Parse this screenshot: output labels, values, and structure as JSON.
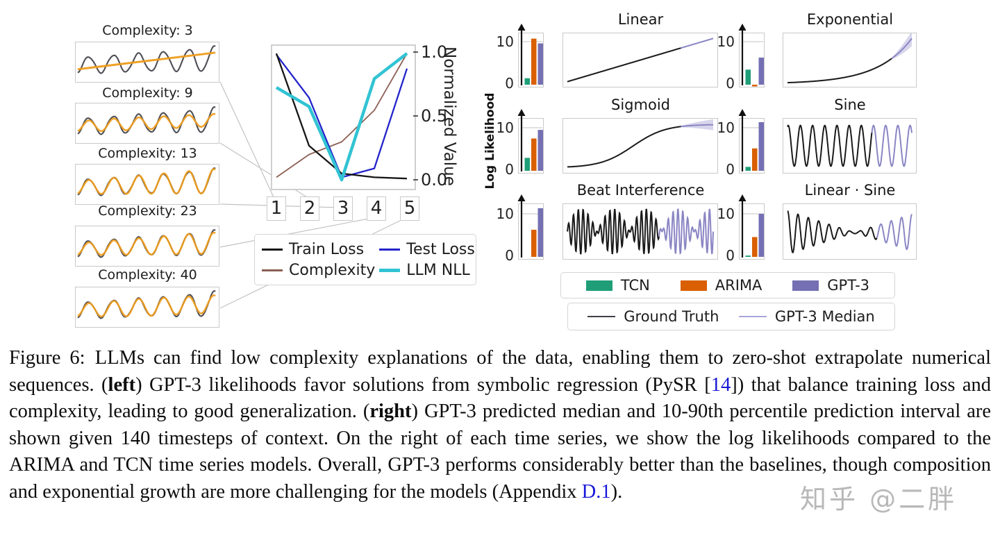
{
  "watermark": "知乎 @二胖",
  "figure": {
    "left_panels": {
      "items": [
        {
          "label": "Complexity: 3",
          "fit": "line",
          "rel": 0,
          "cap": 0
        },
        {
          "label": "Complexity: 9",
          "fit": "sine",
          "rel": 0.75,
          "cap": 0.25
        },
        {
          "label": "Complexity: 13",
          "fit": "sine",
          "rel": 0.97,
          "cap": 1.0
        },
        {
          "label": "Complexity: 23",
          "fit": "sine",
          "rel": 0.88,
          "cap": 0.85
        },
        {
          "label": "Complexity: 40",
          "fit": "sine",
          "rel": 0.93,
          "cap": 0.45
        }
      ]
    },
    "center_chart": {
      "ylabel": "Normalized Value",
      "yticks": [
        "1.0",
        "0.5",
        "0.0"
      ],
      "xticks": [
        "1",
        "2",
        "3",
        "4",
        "5"
      ],
      "legend": [
        {
          "label": "Train Loss",
          "color": "#151515",
          "thick": false
        },
        {
          "label": "Test Loss",
          "color": "#2323cb",
          "thick": false
        },
        {
          "label": "Complexity",
          "color": "#8c5f54",
          "thick": false
        },
        {
          "label": "LLM NLL",
          "color": "#31c3d3",
          "thick": true
        }
      ]
    },
    "right_panel": {
      "ylabel": "Log Likelihood",
      "bar_axis": {
        "top": "10",
        "bottom": "0"
      },
      "groups": [
        {
          "title": "Linear",
          "bars": [
            1.5,
            10.7,
            9.6
          ],
          "wave": "linear",
          "split": 0.78
        },
        {
          "title": "Exponential",
          "bars": [
            3.5,
            -0.4,
            6.3
          ],
          "wave": "exp",
          "split": 0.84
        },
        {
          "title": "Sigmoid",
          "bars": [
            3.0,
            7.5,
            9.5
          ],
          "wave": "sigmoid",
          "split": 0.78
        },
        {
          "title": "Sine",
          "bars": [
            0.9,
            5.2,
            11.3
          ],
          "wave": "sine",
          "split": 0.68
        },
        {
          "title": "Beat Interference",
          "bars": [
            0.0,
            6.3,
            11.3
          ],
          "wave": "beat",
          "split": 0.63
        },
        {
          "title": "Linear · Sine",
          "bars": [
            0.3,
            4.6,
            10.0
          ],
          "wave": "linsine",
          "split": 0.72
        }
      ],
      "model_legend": [
        {
          "label": "TCN",
          "color": "#1f9e77"
        },
        {
          "label": "ARIMA",
          "color": "#d95f02"
        },
        {
          "label": "GPT-3",
          "color": "#7570b3"
        }
      ],
      "line_legend": [
        {
          "label": "Ground Truth",
          "color": "#3e3e46"
        },
        {
          "label": "GPT-3 Median",
          "color": "#a9a5d8"
        }
      ]
    }
  },
  "caption": {
    "segments": [
      {
        "t": "Figure 6: LLMs can find low complexity explanations of the data, enabling them to zero-shot extrapolate numerical sequences. ("
      },
      {
        "t": "left",
        "b": true
      },
      {
        "t": ") GPT-3 likelihoods favor solutions from symbolic regression (PySR ["
      },
      {
        "t": "14",
        "link": true
      },
      {
        "t": "]) that balance training loss and complexity, leading to good generalization. ("
      },
      {
        "t": "right",
        "b": true
      },
      {
        "t": ") GPT-3 predicted median and 10-90th percentile prediction interval are shown given 140 timesteps of context. On the right of each time series, we show the log likelihoods compared to the ARIMA and TCN time series models. Overall, GPT-3 performs considerably better than the baselines, though composition and exponential growth are more challenging for the models (Appendix "
      },
      {
        "t": "D.1",
        "link": true
      },
      {
        "t": ")."
      }
    ]
  },
  "chart_data": [
    {
      "type": "line",
      "title": "Normalized loss / complexity / NLL vs candidate expression",
      "x": [
        1,
        2,
        3,
        4,
        5
      ],
      "xlabel": "",
      "ylabel": "Normalized Value",
      "ylim": [
        0,
        1
      ],
      "yticks": [
        0.0,
        0.5,
        1.0
      ],
      "legend_position": "below",
      "grid": false,
      "series": [
        {
          "name": "Train Loss",
          "color": "#151515",
          "values": [
            1.0,
            0.27,
            0.05,
            0.02,
            0.01
          ]
        },
        {
          "name": "Test Loss",
          "color": "#2323cb",
          "values": [
            0.99,
            0.65,
            0.02,
            0.09,
            0.88
          ]
        },
        {
          "name": "Complexity",
          "color": "#8c5f54",
          "values": [
            0.02,
            0.2,
            0.3,
            0.55,
            1.0
          ]
        },
        {
          "name": "LLM NLL",
          "color": "#31c3d3",
          "values": [
            0.73,
            0.58,
            0.0,
            0.8,
            1.0
          ]
        }
      ]
    },
    {
      "type": "bar",
      "title": "Log Likelihood",
      "categories": [
        "Linear",
        "Exponential",
        "Sigmoid",
        "Sine",
        "Beat Interference",
        "Linear · Sine"
      ],
      "ylim": [
        0,
        10
      ],
      "series": [
        {
          "name": "TCN",
          "color": "#1f9e77",
          "values": [
            1.5,
            3.5,
            3.0,
            0.9,
            0.0,
            0.3
          ]
        },
        {
          "name": "ARIMA",
          "color": "#d95f02",
          "values": [
            10.7,
            -0.4,
            7.5,
            5.2,
            6.3,
            4.6
          ]
        },
        {
          "name": "GPT-3",
          "color": "#7570b3",
          "values": [
            9.6,
            6.3,
            9.5,
            11.3,
            11.3,
            10.0
          ]
        }
      ]
    }
  ]
}
